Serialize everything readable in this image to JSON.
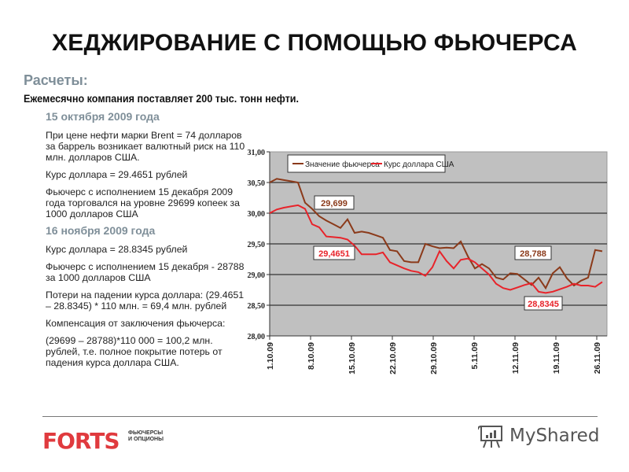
{
  "slide": {
    "title": "ХЕДЖИРОВАНИЕ С ПОМОЩЬЮ ФЬЮЧЕРСА",
    "subtitle": "Расчеты:",
    "lead": "Ежемесячно компания поставляет 200 тыс. тонн нефти."
  },
  "left_column": {
    "section1": {
      "heading": "15 октября 2009 года",
      "p1": "При цене нефти марки Brent = 74 долларов за баррель возникает валютный риск на 110 млн. долларов США.",
      "p2": "Курс доллара = 29.4651  рублей",
      "p3": "Фьючерс с исполнением 15 декабря 2009 года торговался на уровне 29699 копеек за 1000 долларов США"
    },
    "section2": {
      "heading": "16 ноября 2009 года",
      "p1": "Курс доллара = 28.8345  рублей",
      "p2": "Фьючерс с исполнением 15 декабря - 28788 за 1000 долларов США",
      "p3": "Потери на падении курса доллара: (29.4651 – 28.8345) * 110 млн. = 69,4 млн. рублей",
      "p4": "Компенсация от заключения фьючерса:",
      "p5": "(29699 – 28788)*110  000 = 100,2 млн. рублей, т.е. полное покрытие потерь от падения курса доллара США."
    }
  },
  "footer": {
    "logo_text": "FORTS",
    "logo_tag_line1": "ФЬЮЧЕРСЫ",
    "logo_tag_line2": "И ОПЦИОНЫ",
    "watermark": "MyShared"
  },
  "colors": {
    "futures_line": "#8b3a1a",
    "usd_line": "#e8232a",
    "plot_bg": "#c0c0c0",
    "heading_gray": "#7f8f99",
    "forts_red": "#e03a3e"
  },
  "chart_data": {
    "type": "line",
    "title": "",
    "xlabel": "",
    "ylabel": "",
    "ylim": [
      28.0,
      31.0
    ],
    "yticks": [
      "31,00",
      "30,50",
      "30,00",
      "29,50",
      "29,00",
      "28,50",
      "28,00"
    ],
    "xtick_labels": [
      "1.10.09",
      "8.10.09",
      "15.10.09",
      "22.10.09",
      "29.10.09",
      "5.11.09",
      "12.11.09",
      "19.11.09",
      "26.11.09"
    ],
    "grid": true,
    "legend_position": "top",
    "legend": [
      "Значение фьючерса",
      "Курс доллара США"
    ],
    "series": [
      {
        "name": "Значение фьючерса",
        "color": "#8b3a1a",
        "values": [
          30.5,
          30.56,
          30.54,
          30.52,
          30.5,
          30.17,
          30.07,
          29.95,
          29.88,
          29.82,
          29.76,
          29.9,
          29.68,
          29.7,
          29.68,
          29.64,
          29.6,
          29.4,
          29.38,
          29.22,
          29.2,
          29.2,
          29.5,
          29.46,
          29.43,
          29.44,
          29.43,
          29.54,
          29.3,
          29.1,
          29.17,
          29.1,
          28.95,
          28.92,
          29.02,
          29.01,
          28.92,
          28.83,
          28.95,
          28.78,
          29.02,
          29.12,
          28.94,
          28.82,
          28.9,
          28.95,
          29.4,
          29.38
        ]
      },
      {
        "name": "Курс доллара США",
        "color": "#e8232a",
        "values": [
          30.0,
          30.06,
          30.09,
          30.11,
          30.13,
          30.07,
          29.82,
          29.77,
          29.62,
          29.61,
          29.6,
          29.57,
          29.47,
          29.33,
          29.33,
          29.33,
          29.36,
          29.2,
          29.15,
          29.1,
          29.06,
          29.04,
          28.98,
          29.12,
          29.38,
          29.22,
          29.1,
          29.24,
          29.26,
          29.2,
          29.1,
          29.0,
          28.85,
          28.78,
          28.75,
          28.79,
          28.83,
          28.86,
          28.72,
          28.7,
          28.72,
          28.76,
          28.8,
          28.85,
          28.82,
          28.82,
          28.8,
          28.88
        ]
      }
    ],
    "annotations": [
      {
        "text": "29,699",
        "color": "#8b3a1a"
      },
      {
        "text": "29,4651",
        "color": "#e8232a"
      },
      {
        "text": "28,788",
        "color": "#8b3a1a"
      },
      {
        "text": "28,8345",
        "color": "#e8232a"
      }
    ]
  }
}
